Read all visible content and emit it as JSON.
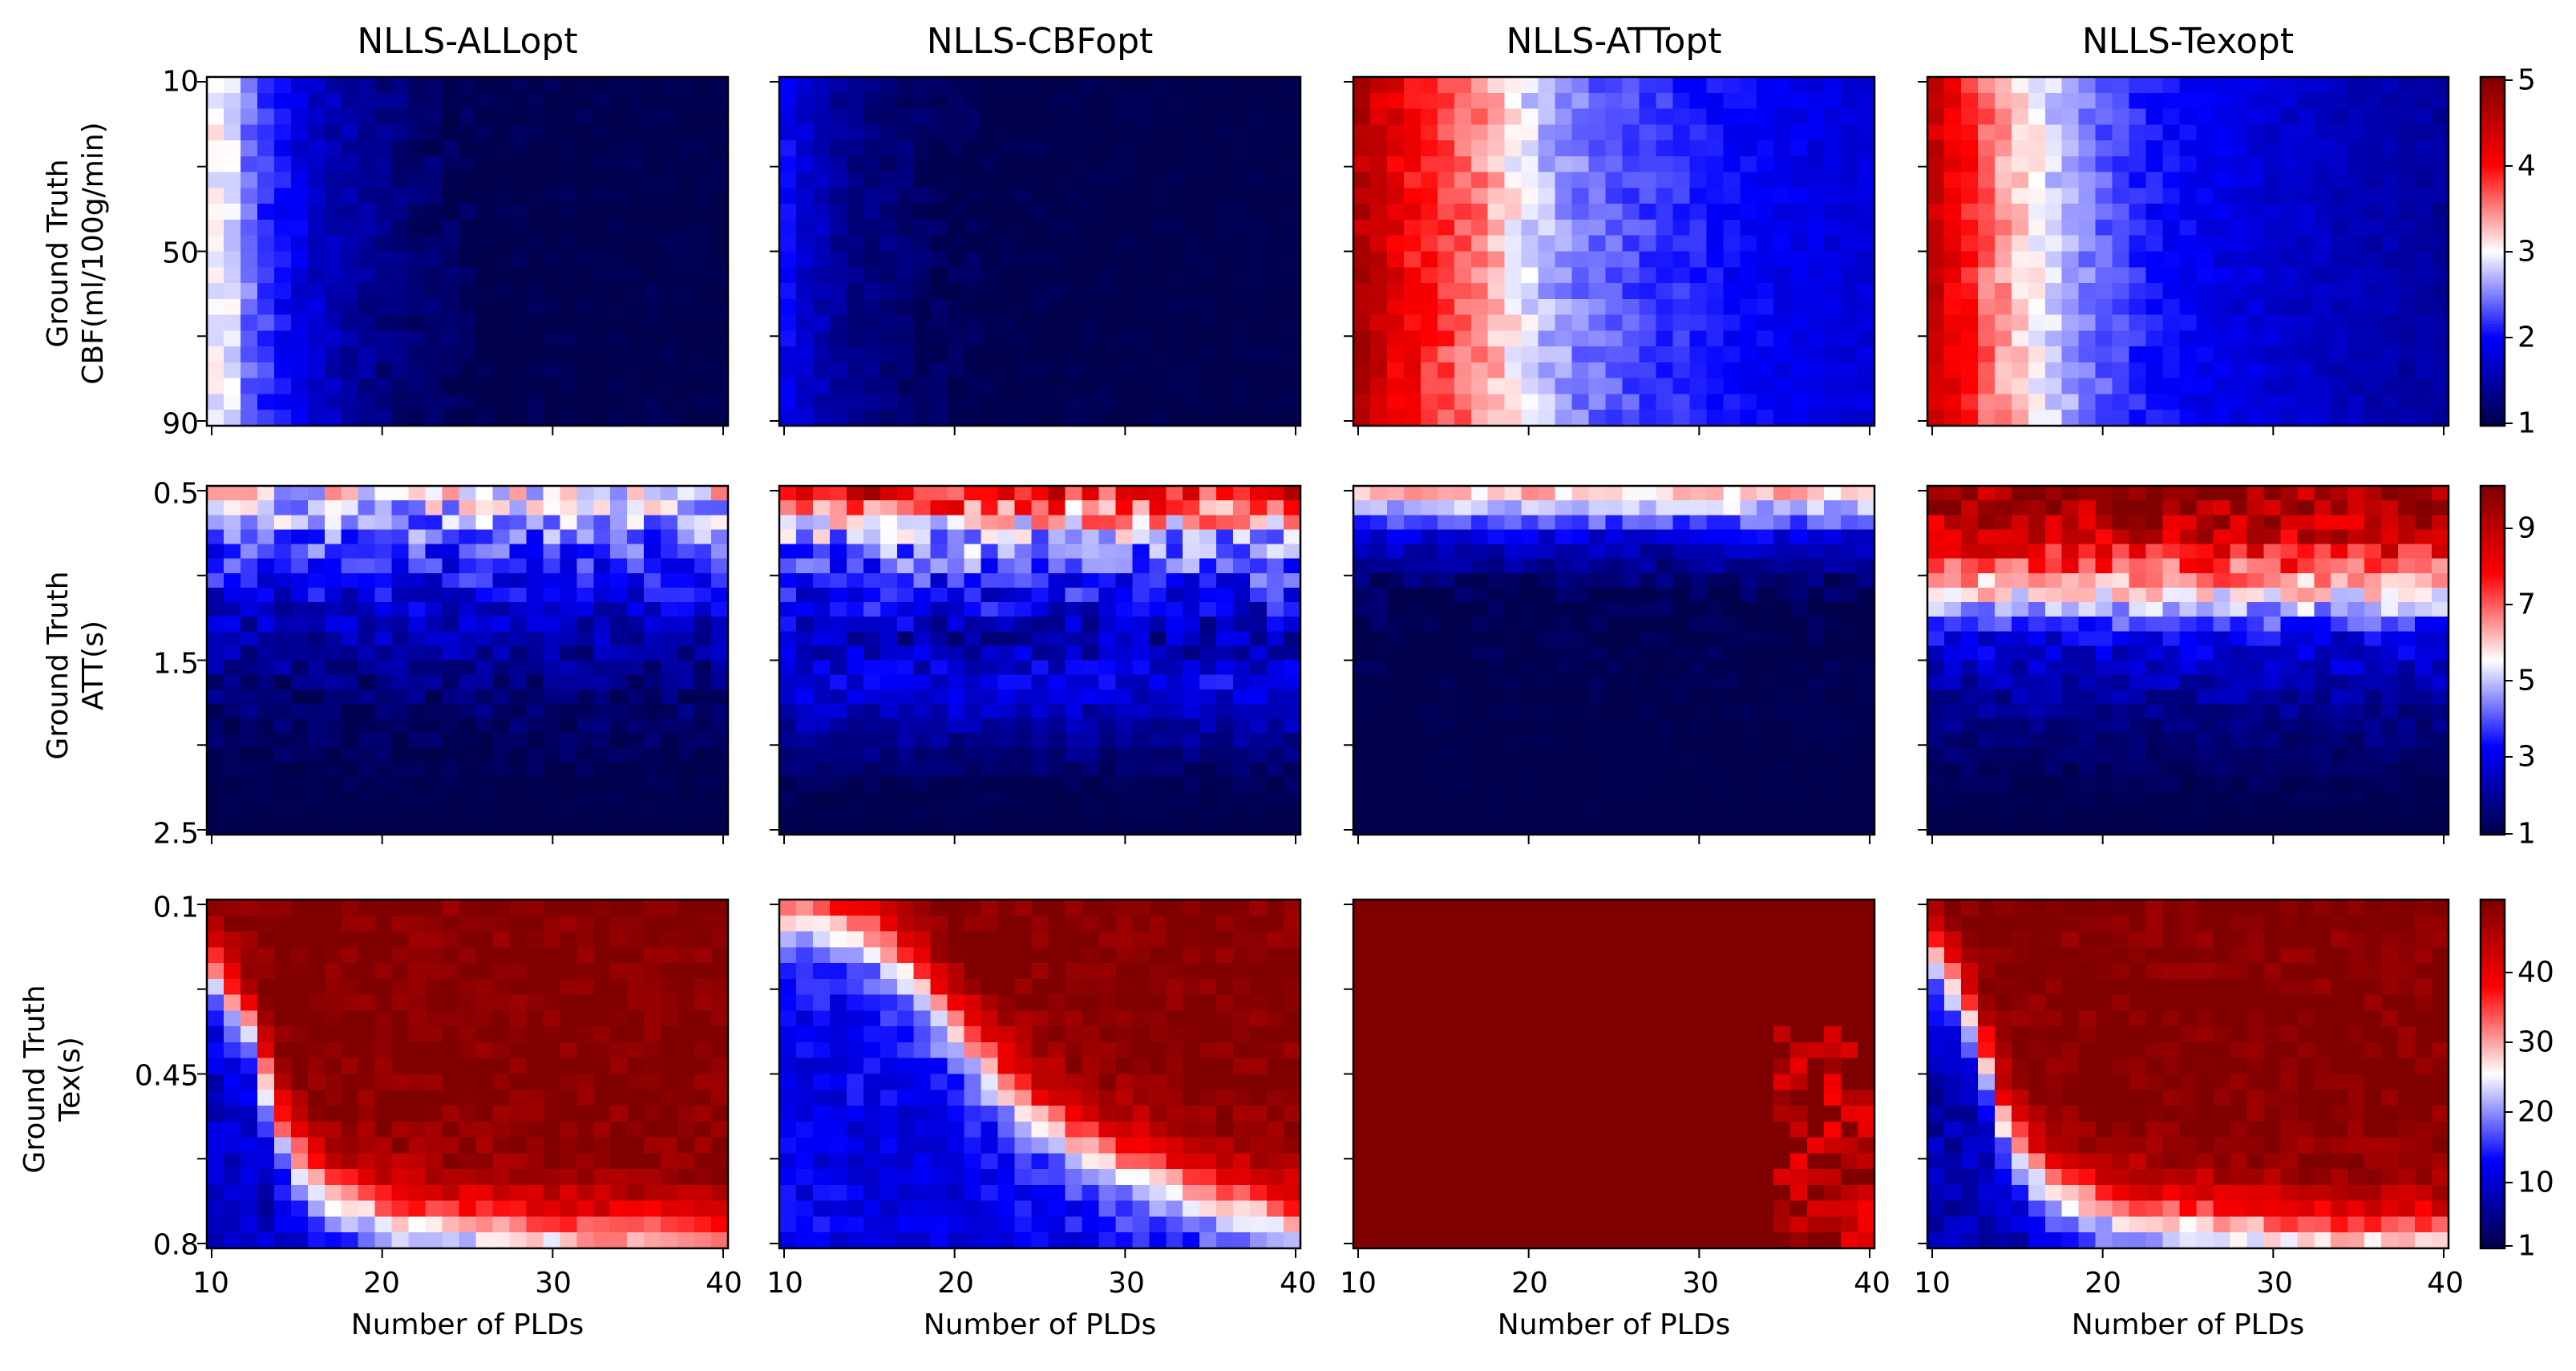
{
  "figure": {
    "column_titles": [
      "NLLS-ALLopt",
      "NLLS-CBFopt",
      "NLLS-ATTopt",
      "NLLS-Texopt"
    ],
    "x_axis_label": "Number of PLDs",
    "x_tick_labels": [
      "10",
      "20",
      "30",
      "40"
    ],
    "row_labels": [
      {
        "line1": "Ground Truth",
        "line2": "CBF(ml/100g/min)"
      },
      {
        "line1": "Ground Truth",
        "line2": "ATT(s)"
      },
      {
        "line1": "Ground Truth",
        "line2": "Tex(s)"
      }
    ],
    "colormap": "seismic",
    "colormap_stops": [
      "#00004c",
      "#0000ff",
      "#ffffff",
      "#ff0000",
      "#800000"
    ]
  },
  "chart_data": [
    {
      "type": "heatmap",
      "row": "CBF",
      "x": {
        "label": "Number of PLDs",
        "range": [
          10,
          40
        ],
        "ticks": [
          10,
          20,
          30,
          40
        ]
      },
      "y": {
        "label": "Ground Truth CBF(ml/100g/min)",
        "range": [
          10,
          90
        ],
        "tick_labels": [
          "10",
          "50",
          "90"
        ]
      },
      "colorbar": {
        "range": [
          1,
          5
        ],
        "tick_labels": [
          "1",
          "2",
          "3",
          "4",
          "5"
        ]
      },
      "panels": [
        {
          "title": "NLLS-ALLopt",
          "profile": [
            2.95,
            2.85,
            2.45,
            2.2,
            2.0,
            1.85,
            1.7,
            1.6,
            1.5,
            1.4,
            1.3,
            1.25,
            1.2,
            1.15,
            1.1,
            1.05,
            1.0,
            1.0,
            1.0,
            1.0,
            1.0,
            1.0,
            1.0,
            1.0,
            1.0,
            1.0,
            1.0,
            1.0,
            1.0,
            1.0,
            1.0
          ],
          "noise": 0.2
        },
        {
          "title": "NLLS-CBFopt",
          "profile": [
            1.95,
            1.75,
            1.6,
            1.45,
            1.35,
            1.3,
            1.25,
            1.2,
            1.15,
            1.1,
            1.05,
            1.05,
            1.0,
            1.0,
            1.0,
            1.0,
            1.0,
            1.0,
            1.0,
            1.0,
            1.0,
            1.0,
            1.0,
            1.0,
            1.0,
            1.0,
            1.0,
            1.0,
            1.0,
            1.0,
            1.0
          ],
          "noise": 0.15
        },
        {
          "title": "NLLS-ATTopt",
          "profile": [
            4.6,
            4.4,
            4.2,
            4.0,
            3.9,
            3.75,
            3.6,
            3.5,
            3.3,
            3.05,
            2.85,
            2.7,
            2.6,
            2.5,
            2.4,
            2.35,
            2.3,
            2.25,
            2.2,
            2.15,
            2.1,
            2.05,
            2.0,
            2.0,
            1.95,
            1.9,
            1.9,
            1.85,
            1.85,
            1.8,
            1.8
          ],
          "noise": 0.25
        },
        {
          "title": "NLLS-Texopt",
          "profile": [
            4.4,
            4.15,
            3.9,
            3.6,
            3.4,
            3.2,
            3.0,
            2.8,
            2.65,
            2.5,
            2.35,
            2.25,
            2.15,
            2.05,
            2.0,
            1.95,
            1.9,
            1.85,
            1.8,
            1.8,
            1.75,
            1.7,
            1.7,
            1.65,
            1.6,
            1.6,
            1.55,
            1.55,
            1.5,
            1.5,
            1.45
          ],
          "noise": 0.2
        }
      ]
    },
    {
      "type": "heatmap",
      "row": "ATT",
      "x": {
        "label": "Number of PLDs",
        "range": [
          10,
          40
        ],
        "ticks": [
          10,
          20,
          30,
          40
        ]
      },
      "y": {
        "label": "Ground Truth ATT(s)",
        "range": [
          0.5,
          2.5
        ],
        "tick_labels": [
          "0.5",
          "1.5",
          "2.5"
        ]
      },
      "colorbar": {
        "range": [
          1,
          10
        ],
        "tick_labels": [
          "1",
          "3",
          "5",
          "7",
          "9"
        ]
      },
      "panels": [
        {
          "title": "NLLS-ALLopt",
          "profile": [
            5.5,
            4.0,
            3.0,
            2.2,
            1.6,
            1.3,
            1.1,
            1.0
          ],
          "noise": 1.2
        },
        {
          "title": "NLLS-CBFopt",
          "profile": [
            8.0,
            4.5,
            3.5,
            2.2,
            3.0,
            2.0,
            1.2,
            1.0
          ],
          "noise": 1.5
        },
        {
          "title": "NLLS-ATTopt",
          "profile": [
            6.0,
            2.6,
            1.2,
            1.0,
            1.0,
            1.0,
            1.0,
            1.0
          ],
          "noise": 0.6
        },
        {
          "title": "NLLS-Texopt",
          "profile": [
            9.5,
            8.5,
            6.0,
            3.0,
            2.2,
            1.6,
            1.2,
            1.0
          ],
          "noise": 1.2
        }
      ]
    },
    {
      "type": "heatmap",
      "row": "Tex",
      "x": {
        "label": "Number of PLDs",
        "range": [
          10,
          40
        ],
        "ticks": [
          10,
          20,
          30,
          40
        ]
      },
      "y": {
        "label": "Ground Truth Tex(s)",
        "range": [
          0.1,
          0.8
        ],
        "tick_labels": [
          "0.1",
          "0.45",
          "0.8"
        ]
      },
      "colorbar": {
        "range": [
          1,
          50
        ],
        "tick_labels": [
          "10",
          "20",
          "30",
          "40"
        ]
      },
      "panels": [
        {
          "title": "NLLS-ALLopt",
          "boundary_y": [
            0.19,
            0.37,
            0.72,
            0.85,
            0.9,
            0.93,
            0.95,
            0.96,
            0.97,
            0.98,
            0.99,
            1.0,
            1.0,
            1.0,
            1.0
          ],
          "low_value": 9,
          "high_value": 50
        },
        {
          "title": "NLLS-CBFopt",
          "boundary_y": [
            0.01,
            0.02,
            0.05,
            0.14,
            0.27,
            0.4,
            0.52,
            0.62,
            0.69,
            0.75,
            0.79,
            0.83,
            0.87,
            0.9,
            0.93
          ],
          "low_value": 12,
          "high_value": 50
        },
        {
          "title": "NLLS-ATTopt",
          "boundary_y": null,
          "low_value": 48,
          "high_value": 50
        },
        {
          "title": "NLLS-Texopt",
          "boundary_y": [
            0.14,
            0.33,
            0.68,
            0.82,
            0.88,
            0.92,
            0.94,
            0.95,
            0.96,
            0.97,
            0.98,
            1.0,
            1.0,
            1.0,
            1.0
          ],
          "low_value": 8,
          "high_value": 50
        }
      ]
    }
  ]
}
